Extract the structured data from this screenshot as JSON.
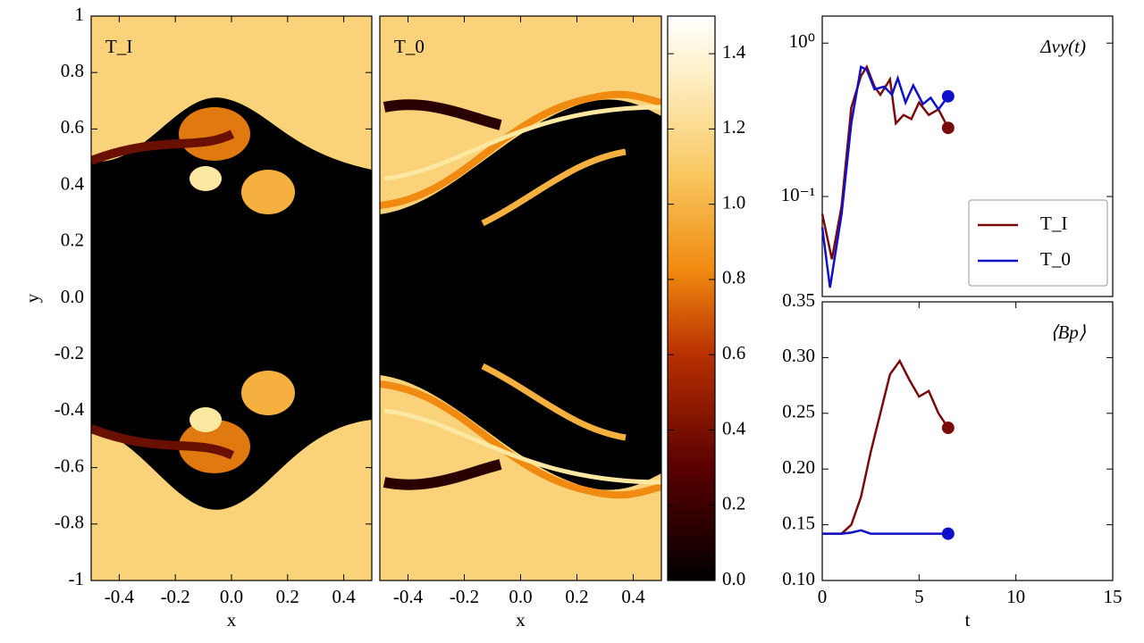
{
  "chart_data": [
    {
      "type": "heatmap",
      "title": "T_I",
      "xlabel": "x",
      "ylabel": "y",
      "xlim": [
        -0.5,
        0.5
      ],
      "ylim": [
        -1,
        1
      ],
      "xticks": [
        -0.4,
        -0.2,
        {
          "value": 0,
          "label": "0.0"
        },
        0.2,
        0.4
      ],
      "yticks": [
        -1,
        -0.8,
        -0.6,
        -0.4,
        -0.2,
        {
          "value": 0,
          "label": "0.0"
        },
        0.2,
        0.4,
        0.6,
        0.8,
        1
      ]
    },
    {
      "type": "heatmap",
      "title": "T_0",
      "xlabel": "x",
      "xlim": [
        -0.5,
        0.5
      ],
      "ylim": [
        -1,
        1
      ],
      "xticks": [
        -0.4,
        -0.2,
        {
          "value": 0,
          "label": "0.0"
        },
        0.2,
        0.4
      ]
    },
    {
      "type": "colorbar",
      "ylim": [
        0,
        1.5
      ],
      "yticks": [
        {
          "value": 0,
          "label": "0.0"
        },
        0.2,
        0.4,
        0.6,
        0.8,
        {
          "value": 1,
          "label": "1.0"
        },
        1.2,
        1.4
      ]
    },
    {
      "type": "line",
      "annotation": "Δvy(t)",
      "log_scale": true,
      "legend": "lower right",
      "xlim": [
        0,
        15
      ],
      "ylim": [
        0.0223,
        1.5
      ],
      "yticks": [
        {
          "value": 0.1,
          "label": "10⁻¹"
        },
        {
          "value": 1,
          "label": "10⁰"
        }
      ],
      "series": [
        {
          "name": "T_I",
          "color": "#7a0a0a",
          "x": [
            0,
            0.5,
            1,
            1.5,
            2,
            2.3,
            2.7,
            3,
            3.5,
            3.8,
            4.2,
            4.6,
            5,
            5.5,
            6,
            6.5
          ],
          "values": [
            0.077,
            0.039,
            0.087,
            0.38,
            0.61,
            0.7,
            0.52,
            0.46,
            0.58,
            0.3,
            0.34,
            0.32,
            0.41,
            0.34,
            0.37,
            0.28
          ]
        },
        {
          "name": "T_0",
          "color": "#1010c8",
          "x": [
            0,
            0.4,
            1,
            1.5,
            2,
            2.3,
            2.7,
            3.2,
            3.6,
            3.9,
            4.3,
            4.7,
            5.2,
            5.6,
            6,
            6.5
          ],
          "values": [
            0.063,
            0.0255,
            0.077,
            0.3,
            0.7,
            0.67,
            0.5,
            0.52,
            0.46,
            0.59,
            0.41,
            0.53,
            0.4,
            0.44,
            0.37,
            0.45
          ]
        }
      ]
    },
    {
      "type": "line",
      "annotation": "⟨Bp⟩",
      "xlabel": "t",
      "xlim": [
        0,
        15
      ],
      "ylim": [
        0.1,
        0.35
      ],
      "xticks": [
        0,
        5,
        10,
        15
      ],
      "yticks": [
        {
          "value": 0.1,
          "label": "0.10"
        },
        0.15,
        {
          "value": 0.2,
          "label": "0.20"
        },
        0.25,
        {
          "value": 0.3,
          "label": "0.30"
        },
        0.35
      ],
      "series": [
        {
          "name": "T_I",
          "color": "#7a0a0a",
          "x": [
            0,
            1,
            1.5,
            2,
            2.5,
            3,
            3.5,
            4,
            4.5,
            5,
            5.5,
            6,
            6.5
          ],
          "values": [
            0.142,
            0.142,
            0.15,
            0.175,
            0.215,
            0.25,
            0.285,
            0.297,
            0.28,
            0.265,
            0.27,
            0.25,
            0.237
          ]
        },
        {
          "name": "T_0",
          "color": "#1010c8",
          "x": [
            0,
            1,
            1.5,
            2,
            2.5,
            3,
            4,
            5,
            6,
            6.5
          ],
          "values": [
            0.142,
            0.142,
            0.143,
            0.145,
            0.142,
            0.142,
            0.142,
            0.142,
            0.142,
            0.142
          ]
        }
      ]
    }
  ]
}
